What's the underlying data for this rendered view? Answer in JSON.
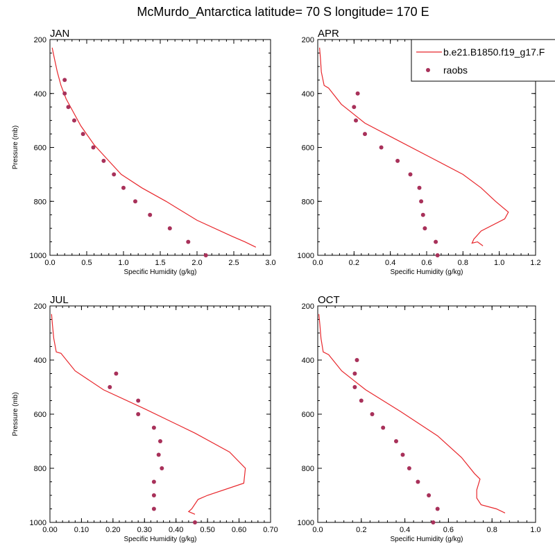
{
  "title": "McMurdo_Antarctica  latitude= 70 S longitude= 170 E",
  "colors": {
    "model": "#e8262b",
    "obs": "#a8315a"
  },
  "legend": {
    "model_label": "b.e21.B1850.f19_g17.F",
    "obs_label": "raobs"
  },
  "chart_data": [
    {
      "type": "line",
      "title": "JAN",
      "xlabel": "Specific Humidity (g/kg)",
      "ylabel": "Pressure (mb)",
      "xlim": [
        0.0,
        3.0
      ],
      "ylim": [
        200,
        1000
      ],
      "x_ticks": [
        "0.0",
        "0.5",
        "1.0",
        "1.5",
        "2.0",
        "2.5",
        "3.0"
      ],
      "x_tick_values": [
        0.0,
        0.5,
        1.0,
        1.5,
        2.0,
        2.5,
        3.0
      ],
      "y_ticks": [
        "200",
        "400",
        "600",
        "800",
        "1000"
      ],
      "y_tick_values": [
        200,
        400,
        600,
        800,
        1000
      ],
      "series": [
        {
          "name": "model",
          "kind": "line",
          "x": [
            0.03,
            0.06,
            0.1,
            0.15,
            0.22,
            0.3,
            0.42,
            0.6,
            0.8,
            0.97,
            1.25,
            1.58,
            2.0,
            2.48,
            2.65,
            2.8
          ],
          "y": [
            230,
            270,
            320,
            370,
            420,
            460,
            520,
            590,
            650,
            700,
            750,
            800,
            870,
            930,
            950,
            970
          ]
        },
        {
          "name": "raobs",
          "kind": "scatter",
          "x": [
            0.2,
            0.2,
            0.25,
            0.33,
            0.45,
            0.59,
            0.73,
            0.87,
            1.0,
            1.16,
            1.36,
            1.63,
            1.88,
            2.12
          ],
          "y": [
            350,
            400,
            450,
            500,
            550,
            600,
            650,
            700,
            750,
            800,
            850,
            900,
            950,
            1000
          ]
        }
      ]
    },
    {
      "type": "line",
      "title": "APR",
      "xlabel": "Specific Humidity (g/kg)",
      "ylabel": "",
      "xlim": [
        0.0,
        1.2
      ],
      "ylim": [
        200,
        1000
      ],
      "x_ticks": [
        "0.0",
        "0.2",
        "0.4",
        "0.6",
        "0.8",
        "1.0",
        "1.2"
      ],
      "x_tick_values": [
        0.0,
        0.2,
        0.4,
        0.6,
        0.8,
        1.0,
        1.2
      ],
      "y_ticks": [
        "200",
        "400",
        "600",
        "800",
        "1000"
      ],
      "y_tick_values": [
        200,
        400,
        600,
        800,
        1000
      ],
      "series": [
        {
          "name": "model",
          "kind": "line",
          "x": [
            0.01,
            0.015,
            0.02,
            0.035,
            0.06,
            0.13,
            0.26,
            0.43,
            0.63,
            0.8,
            0.9,
            0.98,
            1.05,
            1.03,
            0.9,
            0.86,
            0.85,
            0.88,
            0.91
          ],
          "y": [
            230,
            270,
            320,
            370,
            380,
            440,
            510,
            570,
            640,
            700,
            750,
            800,
            840,
            865,
            910,
            940,
            955,
            950,
            965
          ]
        },
        {
          "name": "raobs",
          "kind": "scatter",
          "x": [
            0.22,
            0.2,
            0.21,
            0.26,
            0.35,
            0.44,
            0.51,
            0.56,
            0.57,
            0.58,
            0.59,
            0.65,
            0.66
          ],
          "y": [
            400,
            450,
            500,
            550,
            600,
            650,
            700,
            750,
            800,
            850,
            900,
            950,
            1000
          ]
        }
      ]
    },
    {
      "type": "line",
      "title": "JUL",
      "xlabel": "Specific Humidity (g/kg)",
      "ylabel": "Pressure (mb)",
      "xlim": [
        0.0,
        0.7
      ],
      "ylim": [
        200,
        1000
      ],
      "x_ticks": [
        "0.00",
        "0.10",
        "0.20",
        "0.30",
        "0.40",
        "0.50",
        "0.60",
        "0.70"
      ],
      "x_tick_values": [
        0.0,
        0.1,
        0.2,
        0.3,
        0.4,
        0.5,
        0.6,
        0.7
      ],
      "y_ticks": [
        "200",
        "400",
        "600",
        "800",
        "1000"
      ],
      "y_tick_values": [
        200,
        400,
        600,
        800,
        1000
      ],
      "series": [
        {
          "name": "model",
          "kind": "line",
          "x": [
            0.005,
            0.008,
            0.012,
            0.02,
            0.035,
            0.08,
            0.17,
            0.3,
            0.46,
            0.57,
            0.62,
            0.615,
            0.5,
            0.47,
            0.45,
            0.44,
            0.46
          ],
          "y": [
            230,
            270,
            320,
            370,
            375,
            440,
            510,
            580,
            670,
            740,
            800,
            855,
            900,
            915,
            950,
            960,
            970
          ]
        },
        {
          "name": "raobs",
          "kind": "scatter",
          "x": [
            0.21,
            0.19,
            0.28,
            0.28,
            0.33,
            0.35,
            0.345,
            0.355,
            0.33,
            0.33,
            0.33,
            0.46
          ],
          "y": [
            450,
            500,
            550,
            600,
            650,
            700,
            750,
            800,
            850,
            900,
            950,
            1000
          ]
        }
      ]
    },
    {
      "type": "line",
      "title": "OCT",
      "xlabel": "Specific Humidity (g/kg)",
      "ylabel": "",
      "xlim": [
        0.0,
        1.0
      ],
      "ylim": [
        200,
        1000
      ],
      "x_ticks": [
        "0.0",
        "0.2",
        "0.4",
        "0.6",
        "0.8",
        "1.0"
      ],
      "x_tick_values": [
        0.0,
        0.2,
        0.4,
        0.6,
        0.8,
        1.0
      ],
      "y_ticks": [
        "200",
        "400",
        "600",
        "800",
        "1000"
      ],
      "y_tick_values": [
        200,
        400,
        600,
        800,
        1000
      ],
      "series": [
        {
          "name": "model",
          "kind": "line",
          "x": [
            0.005,
            0.01,
            0.015,
            0.025,
            0.05,
            0.11,
            0.22,
            0.38,
            0.55,
            0.66,
            0.72,
            0.745,
            0.73,
            0.73,
            0.75,
            0.82,
            0.86
          ],
          "y": [
            230,
            270,
            320,
            370,
            380,
            440,
            510,
            590,
            680,
            760,
            820,
            840,
            880,
            910,
            935,
            950,
            965
          ]
        },
        {
          "name": "raobs",
          "kind": "scatter",
          "x": [
            0.18,
            0.17,
            0.17,
            0.2,
            0.25,
            0.3,
            0.36,
            0.39,
            0.42,
            0.46,
            0.51,
            0.55,
            0.53
          ],
          "y": [
            400,
            450,
            500,
            550,
            600,
            650,
            700,
            750,
            800,
            850,
            900,
            950,
            1000
          ]
        }
      ]
    }
  ]
}
